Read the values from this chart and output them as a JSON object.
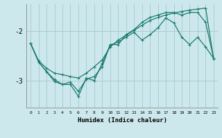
{
  "xlabel": "Humidex (Indice chaleur)",
  "bg_color": "#cce8ec",
  "grid_color": "#aacdd4",
  "line_color": "#1a7a6e",
  "xlim": [
    -0.5,
    23.5
  ],
  "ylim": [
    -3.55,
    -1.45
  ],
  "yticks": [
    -3,
    -2
  ],
  "xticks": [
    0,
    1,
    2,
    3,
    4,
    5,
    6,
    7,
    8,
    9,
    10,
    11,
    12,
    13,
    14,
    15,
    16,
    17,
    18,
    19,
    20,
    21,
    22,
    23
  ],
  "line1_x": [
    0,
    1,
    2,
    3,
    4,
    5,
    6,
    7,
    8,
    9,
    10,
    11,
    12,
    13,
    14,
    15,
    16,
    17,
    18,
    19,
    20,
    21,
    22,
    23
  ],
  "line1_y": [
    -2.25,
    -2.6,
    -2.75,
    -2.85,
    -2.88,
    -2.92,
    -2.95,
    -2.85,
    -2.72,
    -2.58,
    -2.32,
    -2.18,
    -2.08,
    -1.98,
    -1.88,
    -1.78,
    -1.72,
    -1.67,
    -1.63,
    -1.6,
    -1.57,
    -1.55,
    -1.53,
    -2.55
  ],
  "line2_x": [
    0,
    1,
    2,
    3,
    4,
    5,
    6,
    7,
    8,
    9,
    10,
    11,
    12,
    13,
    14,
    15,
    16,
    17,
    18,
    19,
    20,
    21,
    22,
    23
  ],
  "line2_y": [
    -2.25,
    -2.62,
    -2.82,
    -3.02,
    -3.08,
    -3.08,
    -3.32,
    -2.95,
    -3.0,
    -2.65,
    -2.28,
    -2.22,
    -2.12,
    -2.02,
    -2.18,
    -2.07,
    -1.93,
    -1.73,
    -1.83,
    -2.12,
    -2.27,
    -2.12,
    -2.32,
    -2.55
  ],
  "line3_x": [
    0,
    1,
    2,
    3,
    4,
    5,
    6,
    7,
    8,
    9,
    10,
    11,
    12,
    13,
    14,
    15,
    16,
    17,
    18,
    19,
    20,
    21,
    22,
    23
  ],
  "line3_y": [
    -2.25,
    -2.62,
    -2.82,
    -2.98,
    -3.08,
    -3.03,
    -3.22,
    -2.97,
    -2.92,
    -2.72,
    -2.27,
    -2.27,
    -2.07,
    -1.97,
    -1.82,
    -1.72,
    -1.67,
    -1.62,
    -1.62,
    -1.67,
    -1.62,
    -1.62,
    -1.82,
    -2.55
  ]
}
